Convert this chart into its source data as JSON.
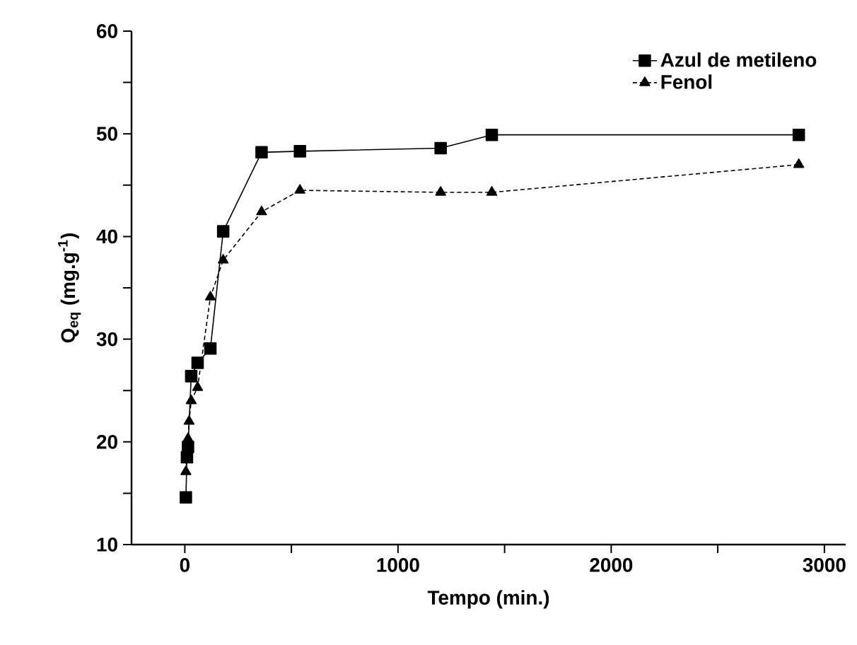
{
  "chart_data": {
    "type": "line",
    "xlabel": "Tempo (min.)",
    "ylabel": "Q$_{eq}$ (mg.g$^{-1}$)",
    "xlim": [
      -250,
      3100
    ],
    "ylim": [
      10,
      60
    ],
    "xticks": [
      0,
      {
        "value": 500,
        "label": null
      },
      1000,
      {
        "value": 1500,
        "label": null
      },
      2000,
      {
        "value": 2500,
        "label": null
      },
      3000
    ],
    "yticks": [
      10,
      {
        "value": 15,
        "label": null
      },
      20,
      {
        "value": 25,
        "label": null
      },
      30,
      {
        "value": 35,
        "label": null
      },
      40,
      {
        "value": 45,
        "label": null
      },
      50,
      {
        "value": 55,
        "label": null
      },
      60
    ],
    "legend": "top right",
    "grid": false,
    "series": [
      {
        "name": "Azul de metileno",
        "color": "#000000",
        "marker": "square",
        "line_style": "solid",
        "x": [
          5,
          10,
          15,
          30,
          60,
          120,
          180,
          360,
          540,
          1200,
          1440,
          2880
        ],
        "values": [
          14.6,
          18.5,
          19.5,
          26.4,
          27.7,
          29.1,
          40.5,
          48.2,
          48.3,
          48.6,
          49.9,
          49.9
        ]
      },
      {
        "name": "Fenol",
        "color": "#000000",
        "marker": "triangle",
        "line_style": "dashed",
        "x": [
          5,
          10,
          15,
          20,
          30,
          60,
          120,
          180,
          360,
          540,
          1200,
          1440,
          2880
        ],
        "values": [
          17.1,
          19.2,
          20.3,
          22.0,
          24.0,
          25.3,
          34.1,
          37.7,
          42.4,
          44.5,
          44.3,
          44.3,
          47.0
        ]
      }
    ]
  }
}
